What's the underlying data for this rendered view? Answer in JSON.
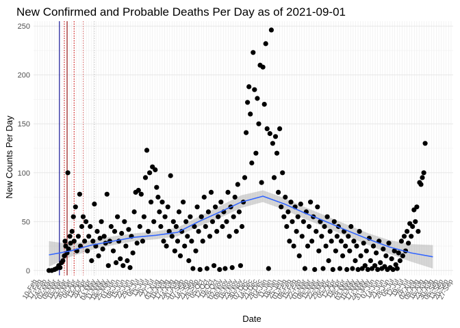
{
  "chart_data": {
    "type": "scatter",
    "title": "New Confirmed and Probable Deaths Per Day as of 2021-09-01",
    "xlabel": "Date",
    "ylabel": "New Counts Per Day",
    "ylim": [
      -5,
      255
    ],
    "yticks": [
      0,
      50,
      100,
      150,
      200,
      250
    ],
    "x_range": [
      "2020-02-08",
      "2021-09-30"
    ],
    "x_tick_labels": [
      "10-Feb",
      "17-Feb",
      "24-Feb",
      "02-Mar",
      "09-Mar",
      "16-Mar",
      "23-Mar",
      "30-Mar",
      "06-Apr",
      "13-Apr",
      "20-Apr",
      "27-Apr",
      "04-May",
      "11-May",
      "18-May",
      "25-May",
      "01-Jun",
      "08-Jun",
      "15-Jun",
      "22-Jun",
      "29-Jun",
      "06-Jul",
      "13-Jul",
      "20-Jul",
      "27-Jul",
      "03-Aug",
      "10-Aug",
      "17-Aug",
      "24-Aug",
      "31-Aug",
      "07-Sep",
      "14-Sep",
      "21-Sep",
      "28-Sep",
      "05-Oct",
      "12-Oct",
      "19-Oct",
      "26-Oct",
      "02-Nov",
      "09-Nov",
      "16-Nov",
      "23-Nov",
      "30-Nov",
      "07-Dec",
      "14-Dec",
      "21-Dec",
      "28-Dec",
      "04-Jan",
      "11-Jan",
      "18-Jan",
      "25-Jan",
      "01-Feb",
      "08-Feb",
      "15-Feb",
      "22-Feb",
      "01-Mar",
      "08-Mar",
      "15-Mar",
      "22-Mar",
      "29-Mar",
      "05-Apr",
      "12-Apr",
      "19-Apr",
      "26-Apr",
      "03-May",
      "10-May",
      "17-May",
      "24-May",
      "31-May",
      "07-Jun",
      "14-Jun",
      "21-Jun",
      "28-Jun",
      "05-Jul",
      "12-Jul",
      "19-Jul",
      "26-Jul",
      "02-Aug",
      "09-Aug",
      "16-Aug",
      "23-Aug",
      "30-Aug",
      "06-Sep",
      "13-Sep",
      "20-Sep",
      "27-Sep"
    ],
    "grid": true,
    "vlines": [
      {
        "date": "2020-03-16",
        "color": "#00008b",
        "style": "solid"
      },
      {
        "date": "2020-03-27",
        "color": "#8b0000",
        "style": "solid"
      },
      {
        "date": "2020-03-23",
        "color": "#cc0000",
        "style": "dotted"
      },
      {
        "date": "2020-04-06",
        "color": "#cc0000",
        "style": "dotted"
      },
      {
        "date": "2020-04-19",
        "color": "#e07070",
        "style": "dotted"
      },
      {
        "date": "2020-05-05",
        "color": "#c8c8c8",
        "style": "dotted"
      }
    ],
    "smooth_curve": [
      {
        "date": "2020-03-01",
        "y": 16
      },
      {
        "date": "2020-04-01",
        "y": 20
      },
      {
        "date": "2020-05-01",
        "y": 26
      },
      {
        "date": "2020-06-01",
        "y": 30
      },
      {
        "date": "2020-07-01",
        "y": 34
      },
      {
        "date": "2020-08-01",
        "y": 36
      },
      {
        "date": "2020-09-01",
        "y": 39
      },
      {
        "date": "2020-10-01",
        "y": 50
      },
      {
        "date": "2020-11-01",
        "y": 60
      },
      {
        "date": "2020-12-01",
        "y": 70
      },
      {
        "date": "2021-01-01",
        "y": 76
      },
      {
        "date": "2021-02-01",
        "y": 68
      },
      {
        "date": "2021-03-01",
        "y": 59
      },
      {
        "date": "2021-04-01",
        "y": 50
      },
      {
        "date": "2021-05-01",
        "y": 41
      },
      {
        "date": "2021-06-01",
        "y": 32
      },
      {
        "date": "2021-07-01",
        "y": 24
      },
      {
        "date": "2021-08-01",
        "y": 18
      },
      {
        "date": "2021-09-01",
        "y": 14
      }
    ],
    "confidence_band": [
      {
        "date": "2020-03-01",
        "low": 4,
        "high": 30
      },
      {
        "date": "2020-04-01",
        "low": 14,
        "high": 27
      },
      {
        "date": "2020-05-01",
        "low": 21,
        "high": 31
      },
      {
        "date": "2020-06-01",
        "low": 26,
        "high": 35
      },
      {
        "date": "2020-07-01",
        "low": 30,
        "high": 38
      },
      {
        "date": "2020-08-01",
        "low": 32,
        "high": 40
      },
      {
        "date": "2020-09-01",
        "low": 35,
        "high": 44
      },
      {
        "date": "2020-10-01",
        "low": 45,
        "high": 55
      },
      {
        "date": "2020-11-01",
        "low": 54,
        "high": 66
      },
      {
        "date": "2020-12-01",
        "low": 64,
        "high": 77
      },
      {
        "date": "2021-01-01",
        "low": 70,
        "high": 82
      },
      {
        "date": "2021-02-01",
        "low": 62,
        "high": 74
      },
      {
        "date": "2021-03-01",
        "low": 53,
        "high": 65
      },
      {
        "date": "2021-04-01",
        "low": 44,
        "high": 56
      },
      {
        "date": "2021-05-01",
        "low": 35,
        "high": 47
      },
      {
        "date": "2021-06-01",
        "low": 26,
        "high": 38
      },
      {
        "date": "2021-07-01",
        "low": 17,
        "high": 31
      },
      {
        "date": "2021-08-01",
        "low": 9,
        "high": 27
      },
      {
        "date": "2021-09-01",
        "low": 2,
        "high": 26
      }
    ],
    "points": [
      [
        "2020-03-01",
        0
      ],
      [
        "2020-03-05",
        0
      ],
      [
        "2020-03-09",
        1
      ],
      [
        "2020-03-12",
        2
      ],
      [
        "2020-03-15",
        5
      ],
      [
        "2020-03-17",
        3
      ],
      [
        "2020-03-19",
        8
      ],
      [
        "2020-03-21",
        10
      ],
      [
        "2020-03-23",
        15
      ],
      [
        "2020-03-24",
        30
      ],
      [
        "2020-03-25",
        25
      ],
      [
        "2020-03-27",
        18
      ],
      [
        "2020-03-28",
        100
      ],
      [
        "2020-03-29",
        22
      ],
      [
        "2020-03-31",
        35
      ],
      [
        "2020-04-01",
        28
      ],
      [
        "2020-04-03",
        40
      ],
      [
        "2020-04-05",
        55
      ],
      [
        "2020-04-06",
        30
      ],
      [
        "2020-04-08",
        65
      ],
      [
        "2020-04-10",
        20
      ],
      [
        "2020-04-12",
        35
      ],
      [
        "2020-04-14",
        78
      ],
      [
        "2020-04-15",
        25
      ],
      [
        "2020-04-17",
        45
      ],
      [
        "2020-04-19",
        55
      ],
      [
        "2020-04-21",
        30
      ],
      [
        "2020-04-23",
        50
      ],
      [
        "2020-04-25",
        20
      ],
      [
        "2020-04-27",
        35
      ],
      [
        "2020-04-29",
        45
      ],
      [
        "2020-05-01",
        10
      ],
      [
        "2020-05-03",
        30
      ],
      [
        "2020-05-05",
        68
      ],
      [
        "2020-05-07",
        25
      ],
      [
        "2020-05-09",
        40
      ],
      [
        "2020-05-11",
        15
      ],
      [
        "2020-05-13",
        33
      ],
      [
        "2020-05-15",
        50
      ],
      [
        "2020-05-17",
        22
      ],
      [
        "2020-05-19",
        35
      ],
      [
        "2020-05-21",
        28
      ],
      [
        "2020-05-23",
        78
      ],
      [
        "2020-05-25",
        5
      ],
      [
        "2020-05-27",
        30
      ],
      [
        "2020-05-29",
        45
      ],
      [
        "2020-06-01",
        20
      ],
      [
        "2020-06-03",
        40
      ],
      [
        "2020-06-05",
        8
      ],
      [
        "2020-06-07",
        55
      ],
      [
        "2020-06-09",
        30
      ],
      [
        "2020-06-11",
        12
      ],
      [
        "2020-06-13",
        38
      ],
      [
        "2020-06-15",
        5
      ],
      [
        "2020-06-17",
        50
      ],
      [
        "2020-06-19",
        25
      ],
      [
        "2020-06-21",
        10
      ],
      [
        "2020-06-23",
        42
      ],
      [
        "2020-06-25",
        3
      ],
      [
        "2020-06-27",
        35
      ],
      [
        "2020-06-29",
        18
      ],
      [
        "2020-07-01",
        60
      ],
      [
        "2020-07-03",
        80
      ],
      [
        "2020-07-05",
        28
      ],
      [
        "2020-07-07",
        82
      ],
      [
        "2020-07-09",
        45
      ],
      [
        "2020-07-11",
        78
      ],
      [
        "2020-07-13",
        30
      ],
      [
        "2020-07-15",
        55
      ],
      [
        "2020-07-17",
        95
      ],
      [
        "2020-07-19",
        123
      ],
      [
        "2020-07-21",
        40
      ],
      [
        "2020-07-23",
        100
      ],
      [
        "2020-07-25",
        70
      ],
      [
        "2020-07-27",
        106
      ],
      [
        "2020-07-29",
        50
      ],
      [
        "2020-07-31",
        103
      ],
      [
        "2020-08-02",
        85
      ],
      [
        "2020-08-04",
        75
      ],
      [
        "2020-08-06",
        60
      ],
      [
        "2020-08-08",
        45
      ],
      [
        "2020-08-10",
        70
      ],
      [
        "2020-08-12",
        30
      ],
      [
        "2020-08-14",
        55
      ],
      [
        "2020-08-16",
        25
      ],
      [
        "2020-08-18",
        65
      ],
      [
        "2020-08-20",
        40
      ],
      [
        "2020-08-22",
        97
      ],
      [
        "2020-08-24",
        35
      ],
      [
        "2020-08-26",
        50
      ],
      [
        "2020-08-28",
        20
      ],
      [
        "2020-08-30",
        45
      ],
      [
        "2020-09-01",
        30
      ],
      [
        "2020-09-03",
        60
      ],
      [
        "2020-09-05",
        15
      ],
      [
        "2020-09-07",
        40
      ],
      [
        "2020-09-09",
        70
      ],
      [
        "2020-09-11",
        25
      ],
      [
        "2020-09-13",
        50
      ],
      [
        "2020-09-15",
        35
      ],
      [
        "2020-09-17",
        10
      ],
      [
        "2020-09-19",
        55
      ],
      [
        "2020-09-21",
        30
      ],
      [
        "2020-09-23",
        2
      ],
      [
        "2020-09-25",
        45
      ],
      [
        "2020-09-27",
        20
      ],
      [
        "2020-09-29",
        65
      ],
      [
        "2020-10-01",
        40
      ],
      [
        "2020-10-03",
        1
      ],
      [
        "2020-10-05",
        55
      ],
      [
        "2020-10-07",
        30
      ],
      [
        "2020-10-09",
        75
      ],
      [
        "2020-10-11",
        45
      ],
      [
        "2020-10-13",
        2
      ],
      [
        "2020-10-15",
        60
      ],
      [
        "2020-10-17",
        35
      ],
      [
        "2020-10-19",
        80
      ],
      [
        "2020-10-21",
        50
      ],
      [
        "2020-10-23",
        5
      ],
      [
        "2020-10-25",
        65
      ],
      [
        "2020-10-27",
        40
      ],
      [
        "2020-10-29",
        55
      ],
      [
        "2020-10-31",
        1
      ],
      [
        "2020-11-02",
        70
      ],
      [
        "2020-11-04",
        45
      ],
      [
        "2020-11-06",
        60
      ],
      [
        "2020-11-08",
        2
      ],
      [
        "2020-11-10",
        50
      ],
      [
        "2020-11-12",
        80
      ],
      [
        "2020-11-14",
        35
      ],
      [
        "2020-11-16",
        65
      ],
      [
        "2020-11-18",
        3
      ],
      [
        "2020-11-20",
        55
      ],
      [
        "2020-11-22",
        75
      ],
      [
        "2020-11-24",
        40
      ],
      [
        "2020-11-26",
        88
      ],
      [
        "2020-11-28",
        60
      ],
      [
        "2020-11-30",
        5
      ],
      [
        "2020-12-02",
        45
      ],
      [
        "2020-12-04",
        70
      ],
      [
        "2020-12-06",
        95
      ],
      [
        "2020-12-08",
        141
      ],
      [
        "2020-12-10",
        172
      ],
      [
        "2020-12-12",
        188
      ],
      [
        "2020-12-14",
        160
      ],
      [
        "2020-12-16",
        110
      ],
      [
        "2020-12-18",
        223
      ],
      [
        "2020-12-20",
        185
      ],
      [
        "2020-12-22",
        120
      ],
      [
        "2020-12-24",
        176
      ],
      [
        "2020-12-26",
        150
      ],
      [
        "2020-12-28",
        210
      ],
      [
        "2020-12-30",
        90
      ],
      [
        "2021-01-01",
        208
      ],
      [
        "2021-01-03",
        170
      ],
      [
        "2021-01-05",
        232
      ],
      [
        "2021-01-07",
        145
      ],
      [
        "2021-01-09",
        2
      ],
      [
        "2021-01-11",
        140
      ],
      [
        "2021-01-13",
        246
      ],
      [
        "2021-01-15",
        130
      ],
      [
        "2021-01-17",
        95
      ],
      [
        "2021-01-19",
        137
      ],
      [
        "2021-01-21",
        120
      ],
      [
        "2021-01-23",
        80
      ],
      [
        "2021-01-25",
        145
      ],
      [
        "2021-01-27",
        65
      ],
      [
        "2021-01-29",
        100
      ],
      [
        "2021-01-31",
        55
      ],
      [
        "2021-02-02",
        75
      ],
      [
        "2021-02-04",
        45
      ],
      [
        "2021-02-06",
        60
      ],
      [
        "2021-02-08",
        30
      ],
      [
        "2021-02-10",
        70
      ],
      [
        "2021-02-12",
        50
      ],
      [
        "2021-02-14",
        25
      ],
      [
        "2021-02-16",
        65
      ],
      [
        "2021-02-18",
        40
      ],
      [
        "2021-02-20",
        55
      ],
      [
        "2021-02-22",
        15
      ],
      [
        "2021-02-24",
        68
      ],
      [
        "2021-02-26",
        35
      ],
      [
        "2021-02-28",
        50
      ],
      [
        "2021-03-02",
        2
      ],
      [
        "2021-03-04",
        60
      ],
      [
        "2021-03-06",
        25
      ],
      [
        "2021-03-08",
        45
      ],
      [
        "2021-03-10",
        70
      ],
      [
        "2021-03-12",
        30
      ],
      [
        "2021-03-14",
        55
      ],
      [
        "2021-03-16",
        1
      ],
      [
        "2021-03-18",
        40
      ],
      [
        "2021-03-20",
        65
      ],
      [
        "2021-03-22",
        20
      ],
      [
        "2021-03-24",
        50
      ],
      [
        "2021-03-26",
        35
      ],
      [
        "2021-03-28",
        2
      ],
      [
        "2021-03-30",
        45
      ],
      [
        "2021-04-01",
        25
      ],
      [
        "2021-04-03",
        55
      ],
      [
        "2021-04-05",
        10
      ],
      [
        "2021-04-07",
        40
      ],
      [
        "2021-04-09",
        30
      ],
      [
        "2021-04-11",
        1
      ],
      [
        "2021-04-13",
        50
      ],
      [
        "2021-04-15",
        20
      ],
      [
        "2021-04-17",
        35
      ],
      [
        "2021-04-19",
        45
      ],
      [
        "2021-04-21",
        2
      ],
      [
        "2021-04-23",
        30
      ],
      [
        "2021-04-25",
        15
      ],
      [
        "2021-04-27",
        40
      ],
      [
        "2021-04-29",
        25
      ],
      [
        "2021-05-01",
        1
      ],
      [
        "2021-05-03",
        35
      ],
      [
        "2021-05-05",
        20
      ],
      [
        "2021-05-07",
        45
      ],
      [
        "2021-05-09",
        2
      ],
      [
        "2021-05-11",
        30
      ],
      [
        "2021-05-13",
        10
      ],
      [
        "2021-05-15",
        25
      ],
      [
        "2021-05-17",
        1
      ],
      [
        "2021-05-19",
        40
      ],
      [
        "2021-05-21",
        15
      ],
      [
        "2021-05-23",
        2
      ],
      [
        "2021-05-25",
        28
      ],
      [
        "2021-05-27",
        5
      ],
      [
        "2021-05-29",
        20
      ],
      [
        "2021-05-31",
        1
      ],
      [
        "2021-06-02",
        33
      ],
      [
        "2021-06-04",
        10
      ],
      [
        "2021-06-06",
        2
      ],
      [
        "2021-06-08",
        25
      ],
      [
        "2021-06-10",
        5
      ],
      [
        "2021-06-12",
        18
      ],
      [
        "2021-06-14",
        1
      ],
      [
        "2021-06-16",
        30
      ],
      [
        "2021-06-18",
        8
      ],
      [
        "2021-06-20",
        2
      ],
      [
        "2021-06-22",
        22
      ],
      [
        "2021-06-24",
        4
      ],
      [
        "2021-06-26",
        15
      ],
      [
        "2021-06-28",
        1
      ],
      [
        "2021-06-30",
        28
      ],
      [
        "2021-07-02",
        3
      ],
      [
        "2021-07-04",
        12
      ],
      [
        "2021-07-06",
        1
      ],
      [
        "2021-07-08",
        20
      ],
      [
        "2021-07-10",
        6
      ],
      [
        "2021-07-12",
        2
      ],
      [
        "2021-07-14",
        18
      ],
      [
        "2021-07-16",
        10
      ],
      [
        "2021-07-18",
        30
      ],
      [
        "2021-07-20",
        15
      ],
      [
        "2021-07-22",
        35
      ],
      [
        "2021-07-24",
        20
      ],
      [
        "2021-07-26",
        40
      ],
      [
        "2021-07-28",
        28
      ],
      [
        "2021-07-30",
        48
      ],
      [
        "2021-08-01",
        35
      ],
      [
        "2021-08-03",
        45
      ],
      [
        "2021-08-05",
        62
      ],
      [
        "2021-08-07",
        50
      ],
      [
        "2021-08-09",
        65
      ],
      [
        "2021-08-11",
        40
      ],
      [
        "2021-08-13",
        90
      ],
      [
        "2021-08-15",
        88
      ],
      [
        "2021-08-17",
        95
      ],
      [
        "2021-08-19",
        100
      ],
      [
        "2021-08-21",
        130
      ]
    ]
  }
}
